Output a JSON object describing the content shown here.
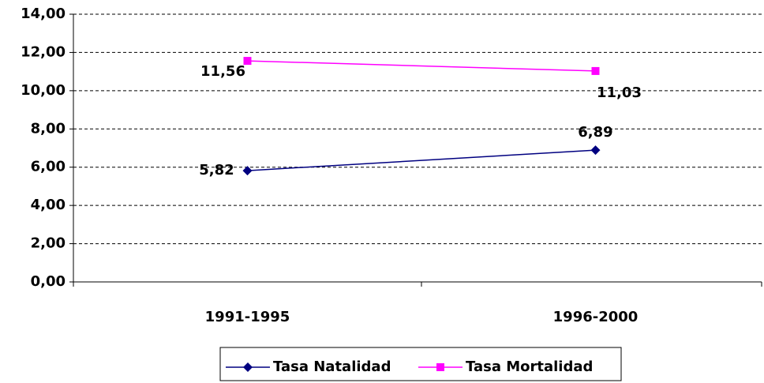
{
  "chart_data": {
    "type": "line",
    "categories": [
      "1991-1995",
      "1996-2000"
    ],
    "series": [
      {
        "name": "Tasa Natalidad",
        "color": "#000080",
        "marker": "diamond",
        "values": [
          5.82,
          6.89
        ],
        "value_labels": [
          "5,82",
          "6,89"
        ]
      },
      {
        "name": "Tasa Mortalidad",
        "color": "#ff00ff",
        "marker": "square",
        "values": [
          11.56,
          11.03
        ],
        "value_labels": [
          "11,56",
          "11,03"
        ]
      }
    ],
    "ylim": [
      0,
      14
    ],
    "yticks": [
      {
        "value": 0,
        "label": "0,00"
      },
      {
        "value": 2,
        "label": "2,00"
      },
      {
        "value": 4,
        "label": "4,00"
      },
      {
        "value": 6,
        "label": "6,00"
      },
      {
        "value": 8,
        "label": "8,00"
      },
      {
        "value": 10,
        "label": "10,00"
      },
      {
        "value": 12,
        "label": "12,00"
      },
      {
        "value": 14,
        "label": "14,00"
      }
    ],
    "grid": true,
    "legend": "bottom"
  }
}
